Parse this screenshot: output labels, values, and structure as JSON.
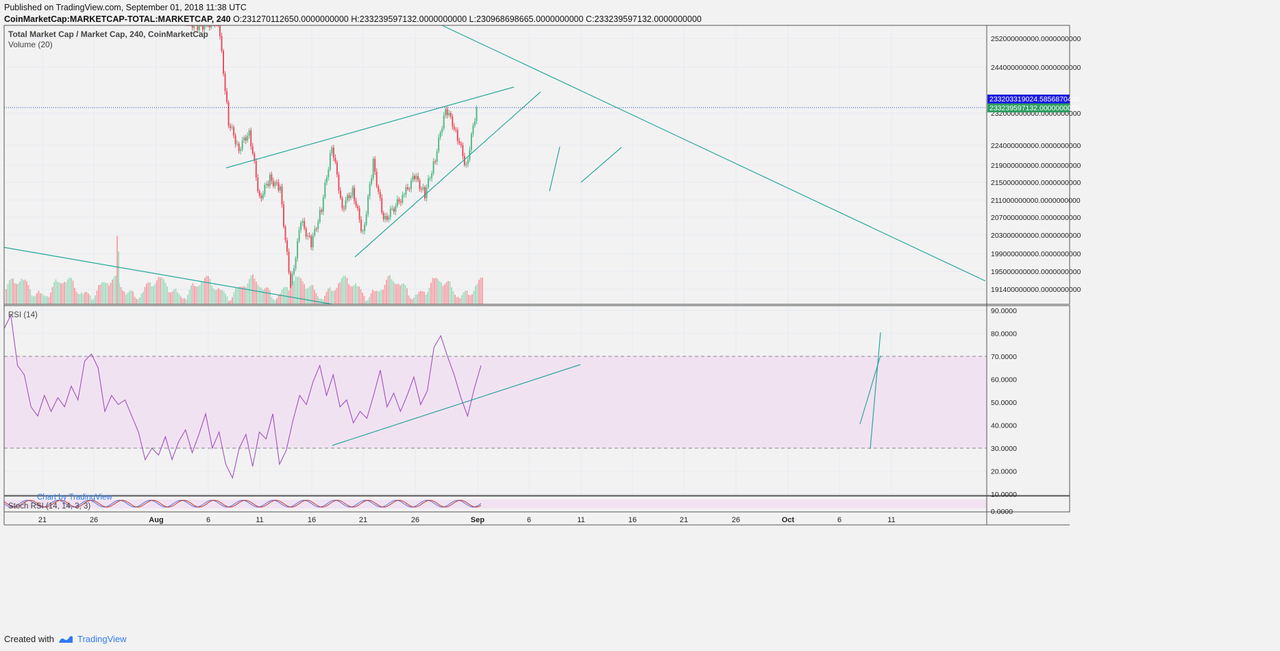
{
  "header": {
    "published": "Published on TradingView.com, September 01, 2018 11:38 UTC",
    "symbol": "CoinMarketCap:MARKETCAP-TOTAL:MARKETCAP, 240",
    "ohlc": "O:231270112650.0000000000 H:233239597132.0000000000 L:230968698665.0000000000 C:233239597132.0000000000"
  },
  "footer": {
    "created_with": "Created with",
    "brand": "TradingView"
  },
  "colors": {
    "up": "#53b987",
    "down": "#eb4d5c",
    "trend": "#26a69a",
    "rsi": "#a04fbd",
    "band": "#f1e2f2",
    "grid": "#e6ebf2"
  },
  "chart_data": [
    {
      "type": "candlestick",
      "title": "Total Market Cap / Market Cap, 240, CoinMarketCap",
      "volume_label": "Volume (20)",
      "x_ticks": [
        "21",
        "26",
        "Aug",
        "6",
        "11",
        "16",
        "21",
        "26",
        "Sep",
        "6",
        "11",
        "16",
        "21",
        "26",
        "Oct",
        "6",
        "11"
      ],
      "y_ticks": [
        "252000000000.0000000000",
        "244000000000.0000000000",
        "232000000000.0000000000",
        "224000000000.0000000000",
        "219000000000.0000000000",
        "215000000000.0000000000",
        "211000000000.0000000000",
        "207000000000.0000000000",
        "203000000000.0000000000",
        "199000000000.0000000000",
        "195000000000.0000000000",
        "191400000000.0000000000"
      ],
      "price_labels": [
        "233203319024.5856870400",
        "233239597132.0000000000"
      ],
      "close_path": [
        [
          "Aug 4",
          252500000000
        ],
        [
          "Aug 5",
          251000000000
        ],
        [
          "Aug 7",
          252500000000
        ],
        [
          "Aug 8",
          230000000000
        ],
        [
          "Aug 9",
          224000000000
        ],
        [
          "Aug 10",
          228000000000
        ],
        [
          "Aug 11",
          213000000000
        ],
        [
          "Aug 12",
          217500000000
        ],
        [
          "Aug 13",
          215000000000
        ],
        [
          "Aug 14",
          193000000000
        ],
        [
          "Aug 15",
          208000000000
        ],
        [
          "Aug 16",
          203000000000
        ],
        [
          "Aug 17",
          211000000000
        ],
        [
          "Aug 18",
          225000000000
        ],
        [
          "Aug 19",
          211000000000
        ],
        [
          "Aug 20",
          215000000000
        ],
        [
          "Aug 21",
          205000000000
        ],
        [
          "Aug 22",
          221000000000
        ],
        [
          "Aug 23",
          208000000000
        ],
        [
          "Aug 25",
          214000000000
        ],
        [
          "Aug 26",
          218000000000
        ],
        [
          "Aug 27",
          214000000000
        ],
        [
          "Aug 28",
          222000000000
        ],
        [
          "Aug 29",
          233200000000
        ],
        [
          "Aug 30",
          228000000000
        ],
        [
          "Aug 31",
          220000000000
        ],
        [
          "Sep 1",
          233239597132
        ]
      ]
    },
    {
      "type": "line",
      "title": "RSI (14)",
      "y_ticks": [
        "90.0000",
        "80.0000",
        "70.0000",
        "60.0000",
        "50.0000",
        "40.0000",
        "30.0000",
        "20.0000",
        "10.0000"
      ],
      "ylim": [
        10,
        90
      ],
      "band": [
        30,
        70
      ],
      "series": [
        {
          "values": [
            82,
            88,
            66,
            62,
            48,
            44,
            53,
            46,
            52,
            48,
            57,
            51,
            68,
            71,
            65,
            46,
            53,
            49,
            51,
            44,
            37,
            25,
            30,
            27,
            35,
            25,
            33,
            38,
            28,
            36,
            45,
            30,
            37,
            23,
            17,
            30,
            36,
            22,
            37,
            34,
            45,
            23,
            29,
            42,
            53,
            49,
            59,
            66,
            53,
            62,
            48,
            51,
            41,
            46,
            43,
            53,
            64,
            48,
            54,
            46,
            53,
            61,
            49,
            55,
            74,
            79,
            70,
            62,
            52,
            44,
            56,
            66
          ]
        }
      ]
    },
    {
      "type": "line",
      "title": "Stoch RSI (14, 14, 3, 3)",
      "y_ticks": [
        "0.0000"
      ],
      "watermark": "Chart by TradingView"
    }
  ]
}
